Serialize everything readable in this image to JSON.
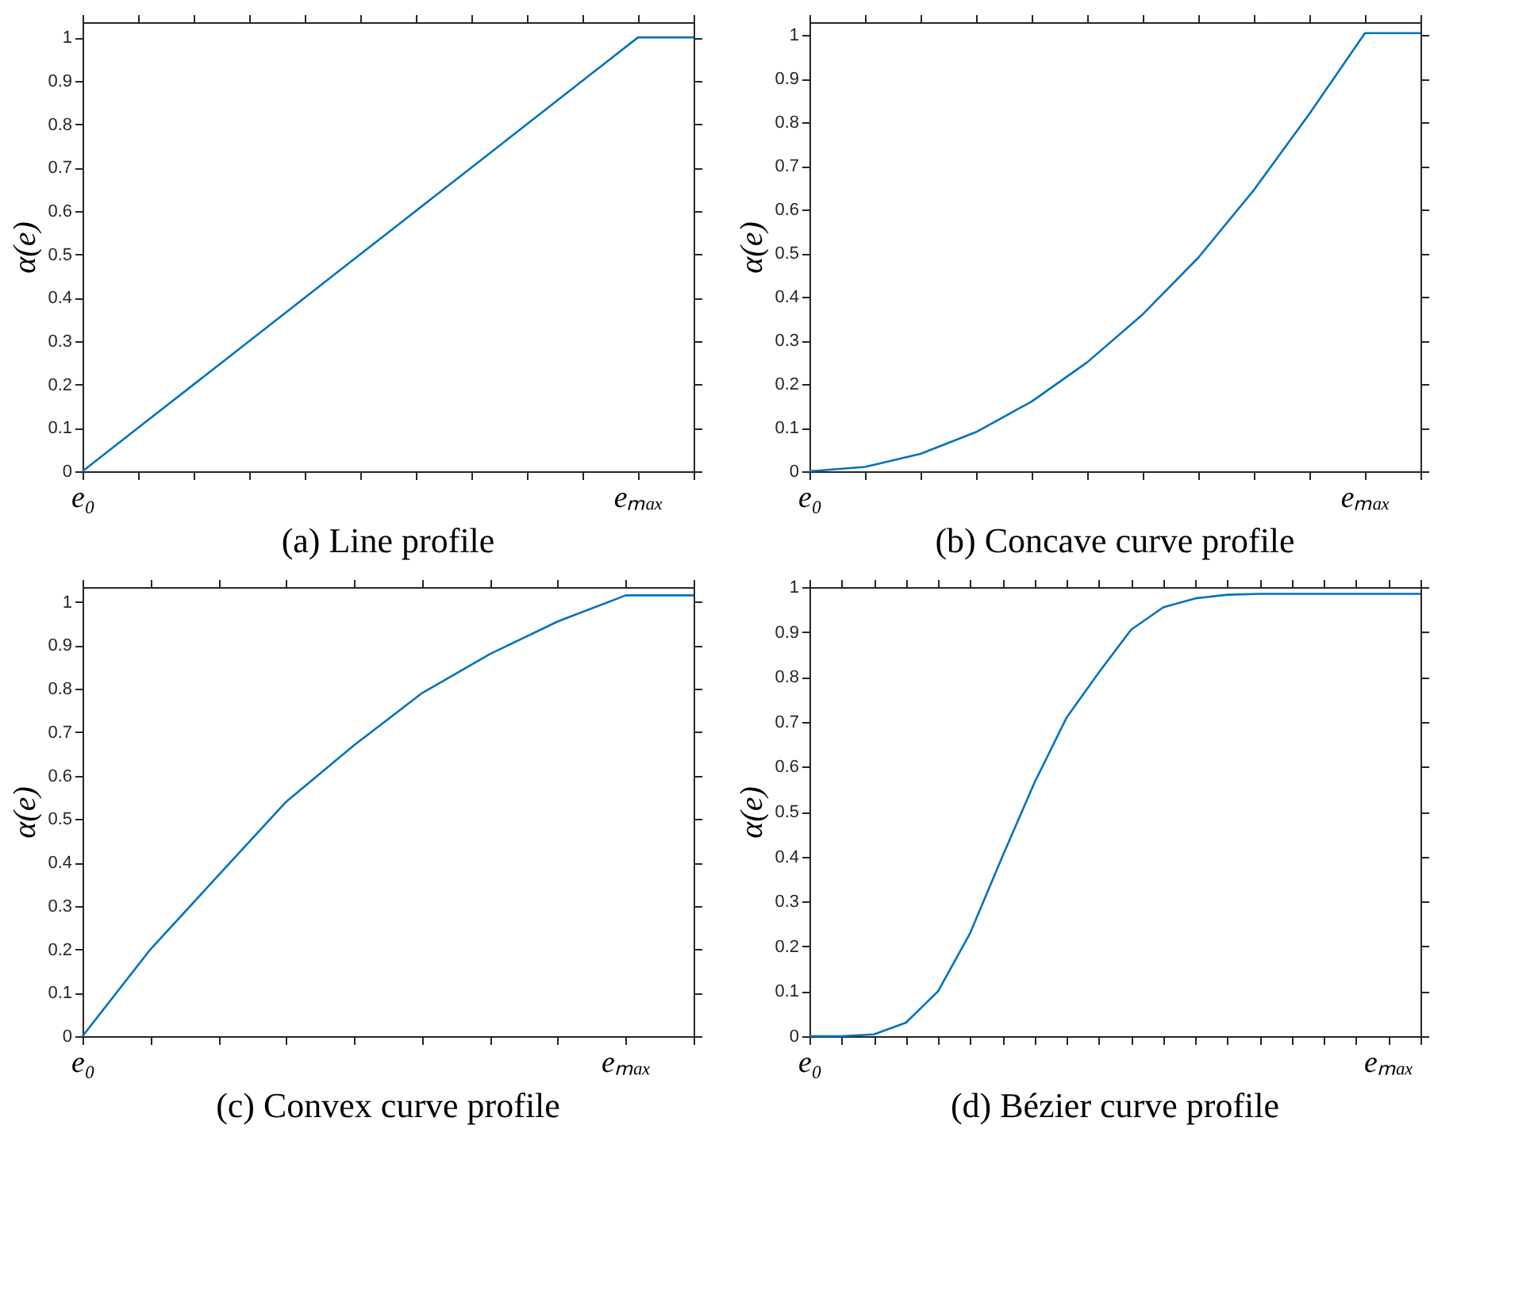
{
  "chart_data": [
    {
      "type": "line",
      "title": "(a) Line profile",
      "ylabel": "α(e)",
      "ylim": [
        0,
        1.035
      ],
      "categories": [
        "e₀",
        null,
        null,
        null,
        null,
        null,
        null,
        null,
        null,
        null,
        "eₘₐₓ",
        null
      ],
      "yticks": [
        0,
        0.1,
        0.2,
        0.3,
        0.4,
        0.5,
        0.6,
        0.7,
        0.8,
        0.9,
        1
      ],
      "grid": false,
      "series": [
        {
          "color": "#0072bd",
          "values": [
            0,
            0.1,
            0.2,
            0.3,
            0.4,
            0.5,
            0.6,
            0.7,
            0.8,
            0.9,
            1,
            1
          ]
        }
      ]
    },
    {
      "type": "line",
      "title": "(b) Concave curve profile",
      "ylabel": "α(e)",
      "ylim": [
        0,
        1.03
      ],
      "categories": [
        "e₀",
        null,
        null,
        null,
        null,
        null,
        null,
        null,
        null,
        null,
        "eₘₐₓ",
        null
      ],
      "yticks": [
        0,
        0.1,
        0.2,
        0.3,
        0.4,
        0.5,
        0.6,
        0.7,
        0.8,
        0.9,
        1
      ],
      "grid": false,
      "series": [
        {
          "color": "#0072bd",
          "values": [
            0,
            0.01,
            0.04,
            0.09,
            0.16,
            0.25,
            0.36,
            0.49,
            0.645,
            0.82,
            1.005,
            1.005
          ]
        }
      ]
    },
    {
      "type": "line",
      "title": "(c) Convex curve profile",
      "ylabel": "α(e)",
      "ylim": [
        0,
        1.034
      ],
      "categories": [
        "e₀",
        null,
        null,
        null,
        null,
        null,
        null,
        null,
        "eₘₐₓ",
        null
      ],
      "yticks": [
        0,
        0.1,
        0.2,
        0.3,
        0.4,
        0.5,
        0.6,
        0.7,
        0.8,
        0.9,
        1
      ],
      "grid": false,
      "series": [
        {
          "color": "#0072bd",
          "values": [
            0,
            0.2,
            0.37,
            0.54,
            0.67,
            0.79,
            0.88,
            0.955,
            1.015,
            1.015
          ]
        }
      ]
    },
    {
      "type": "line",
      "title": "(d) Bézier curve profile",
      "ylabel": "α(e)",
      "ylim": [
        0,
        1
      ],
      "categories": [
        "e₀",
        null,
        null,
        null,
        null,
        null,
        null,
        null,
        null,
        null,
        null,
        null,
        null,
        null,
        null,
        null,
        null,
        null,
        "eₘₐₓ",
        null
      ],
      "yticks": [
        0,
        0.1,
        0.2,
        0.3,
        0.4,
        0.5,
        0.6,
        0.7,
        0.8,
        0.9,
        1
      ],
      "grid": false,
      "series": [
        {
          "color": "#0072bd",
          "values": [
            0,
            0,
            0.004,
            0.03,
            0.1,
            0.23,
            0.4,
            0.565,
            0.71,
            0.81,
            0.905,
            0.955,
            0.975,
            0.983,
            0.985,
            0.985,
            0.985,
            0.985,
            0.985,
            0.985
          ]
        }
      ]
    }
  ]
}
